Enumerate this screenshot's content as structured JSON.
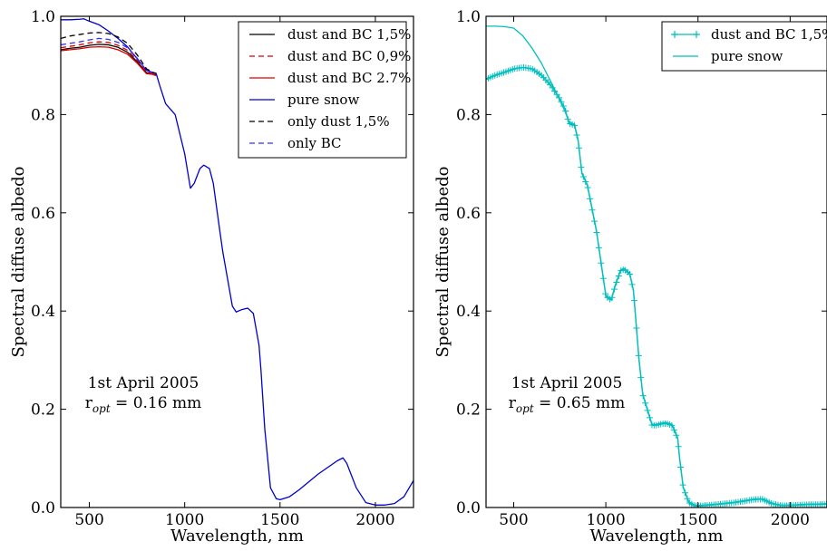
{
  "chart_data": [
    {
      "type": "line",
      "xlabel": "Wavelength, nm",
      "ylabel": "Spectral diffuse albedo",
      "xlim": [
        350,
        2200
      ],
      "ylim": [
        0.0,
        1.0
      ],
      "xticks": [
        500,
        1000,
        1500,
        2000
      ],
      "yticks": [
        0.0,
        0.2,
        0.4,
        0.6,
        0.8,
        1.0
      ],
      "xtick_labels": [
        "500",
        "1000",
        "1500",
        "2000"
      ],
      "ytick_labels": [
        "0.0",
        "0.2",
        "0.4",
        "0.6",
        "0.8",
        "1.0"
      ],
      "grid": false,
      "legend_position": "top-right",
      "annotation": {
        "line1": "1st April 2005",
        "r_prefix": "r",
        "r_sub": "opt",
        "r_suffix": " = 0.16 mm"
      },
      "series": [
        {
          "name": "dust and BC 1,5%",
          "color": "#000000",
          "style": "solid",
          "x": [
            350,
            400,
            450,
            500,
            550,
            600,
            650,
            700,
            750,
            800,
            830,
            850
          ],
          "y": [
            0.932,
            0.935,
            0.937,
            0.941,
            0.943,
            0.942,
            0.937,
            0.927,
            0.908,
            0.885,
            0.883,
            0.88
          ]
        },
        {
          "name": "dust and BC 0,9%",
          "color": "#d40000",
          "style": "dashed",
          "x": [
            350,
            400,
            450,
            500,
            550,
            600,
            650,
            700,
            750,
            800,
            830,
            850
          ],
          "y": [
            0.936,
            0.939,
            0.942,
            0.946,
            0.948,
            0.947,
            0.941,
            0.931,
            0.911,
            0.887,
            0.884,
            0.881
          ]
        },
        {
          "name": "dust and BC 2.7%",
          "color": "#e00000",
          "style": "solid",
          "x": [
            350,
            400,
            450,
            500,
            550,
            600,
            650,
            700,
            750,
            800,
            830,
            850
          ],
          "y": [
            0.93,
            0.932,
            0.934,
            0.937,
            0.938,
            0.937,
            0.932,
            0.923,
            0.905,
            0.883,
            0.882,
            0.879
          ]
        },
        {
          "name": "pure snow",
          "color": "#0000cc",
          "style": "solid",
          "x": [
            350,
            400,
            450,
            470,
            500,
            550,
            600,
            650,
            700,
            750,
            800,
            830,
            850,
            870,
            900,
            950,
            1000,
            1030,
            1050,
            1080,
            1100,
            1130,
            1150,
            1180,
            1200,
            1250,
            1270,
            1300,
            1330,
            1360,
            1390,
            1400,
            1420,
            1450,
            1480,
            1500,
            1550,
            1600,
            1700,
            1800,
            1830,
            1850,
            1900,
            1950,
            2000,
            2050,
            2100,
            2150,
            2200
          ],
          "y": [
            0.993,
            0.993,
            0.994,
            0.995,
            0.99,
            0.983,
            0.97,
            0.955,
            0.938,
            0.914,
            0.89,
            0.886,
            0.884,
            0.858,
            0.822,
            0.8,
            0.72,
            0.65,
            0.66,
            0.69,
            0.697,
            0.69,
            0.66,
            0.575,
            0.52,
            0.41,
            0.398,
            0.403,
            0.406,
            0.395,
            0.33,
            0.28,
            0.16,
            0.04,
            0.018,
            0.016,
            0.022,
            0.036,
            0.068,
            0.095,
            0.101,
            0.09,
            0.04,
            0.01,
            0.005,
            0.005,
            0.008,
            0.022,
            0.055
          ]
        },
        {
          "name": "only dust 1,5%",
          "color": "#000000",
          "style": "dashed",
          "x": [
            350,
            400,
            450,
            500,
            550,
            600,
            650,
            700,
            750,
            800,
            830,
            850
          ],
          "y": [
            0.955,
            0.96,
            0.963,
            0.966,
            0.967,
            0.965,
            0.958,
            0.945,
            0.922,
            0.893,
            0.887,
            0.883
          ]
        },
        {
          "name": "only BC",
          "color": "#3030ff",
          "style": "dashed",
          "x": [
            350,
            400,
            450,
            500,
            550,
            600,
            650,
            700,
            750,
            800,
            830,
            850
          ],
          "y": [
            0.942,
            0.945,
            0.948,
            0.952,
            0.955,
            0.953,
            0.947,
            0.936,
            0.915,
            0.889,
            0.885,
            0.882
          ]
        }
      ]
    },
    {
      "type": "line",
      "xlabel": "Wavelength, nm",
      "ylabel": "Spectral diffuse albedo",
      "xlim": [
        350,
        2200
      ],
      "ylim": [
        0.0,
        1.0
      ],
      "xticks": [
        500,
        1000,
        1500,
        2000
      ],
      "yticks": [
        0.0,
        0.2,
        0.4,
        0.6,
        0.8,
        1.0
      ],
      "xtick_labels": [
        "500",
        "1000",
        "1500",
        "2000"
      ],
      "ytick_labels": [
        "0.0",
        "0.2",
        "0.4",
        "0.6",
        "0.8",
        "1.0"
      ],
      "grid": false,
      "legend_position": "top-right",
      "annotation": {
        "line1": "1st April 2005",
        "r_prefix": "r",
        "r_sub": "opt",
        "r_suffix": " = 0.65 mm"
      },
      "series": [
        {
          "name": "dust and BC 1,5%",
          "color": "#00bfbf",
          "style": "solid-plus",
          "x": [
            350,
            400,
            450,
            500,
            550,
            600,
            650,
            700,
            750,
            780,
            800,
            830,
            850,
            870,
            900,
            950,
            1000,
            1030,
            1050,
            1080,
            1100,
            1130,
            1150,
            1180,
            1200,
            1250,
            1270,
            1300,
            1330,
            1360,
            1390,
            1400,
            1420,
            1450,
            1480,
            1500,
            1600,
            1700,
            1800,
            1850,
            1900,
            1950,
            2000,
            2050,
            2100,
            2150,
            2200
          ],
          "y": [
            0.872,
            0.88,
            0.886,
            0.893,
            0.896,
            0.893,
            0.88,
            0.86,
            0.832,
            0.81,
            0.782,
            0.778,
            0.745,
            0.68,
            0.655,
            0.56,
            0.43,
            0.422,
            0.45,
            0.482,
            0.485,
            0.475,
            0.44,
            0.3,
            0.23,
            0.168,
            0.167,
            0.17,
            0.171,
            0.167,
            0.14,
            0.1,
            0.04,
            0.01,
            0.004,
            0.003,
            0.006,
            0.01,
            0.016,
            0.017,
            0.008,
            0.004,
            0.004,
            0.005,
            0.006,
            0.006,
            0.007
          ]
        },
        {
          "name": "pure snow",
          "color": "#00bfbf",
          "style": "solid",
          "x": [
            350,
            400,
            450,
            500,
            550,
            600,
            650,
            700,
            750,
            780,
            800,
            830,
            850,
            870,
            900,
            950,
            1000,
            1030,
            1050,
            1080,
            1100,
            1130,
            1150,
            1180,
            1200,
            1250,
            1270,
            1300,
            1330,
            1360,
            1390,
            1400,
            1420,
            1450,
            1480,
            1500,
            1600,
            1700,
            1800,
            1850,
            1900,
            1950,
            2000,
            2050,
            2100,
            2150,
            2200
          ],
          "y": [
            0.98,
            0.98,
            0.979,
            0.976,
            0.96,
            0.935,
            0.905,
            0.868,
            0.83,
            0.805,
            0.785,
            0.78,
            0.748,
            0.682,
            0.657,
            0.562,
            0.432,
            0.424,
            0.452,
            0.484,
            0.487,
            0.477,
            0.442,
            0.302,
            0.232,
            0.17,
            0.169,
            0.172,
            0.173,
            0.169,
            0.142,
            0.102,
            0.042,
            0.012,
            0.005,
            0.004,
            0.007,
            0.011,
            0.017,
            0.018,
            0.009,
            0.005,
            0.005,
            0.006,
            0.007,
            0.007,
            0.008
          ]
        }
      ]
    }
  ]
}
